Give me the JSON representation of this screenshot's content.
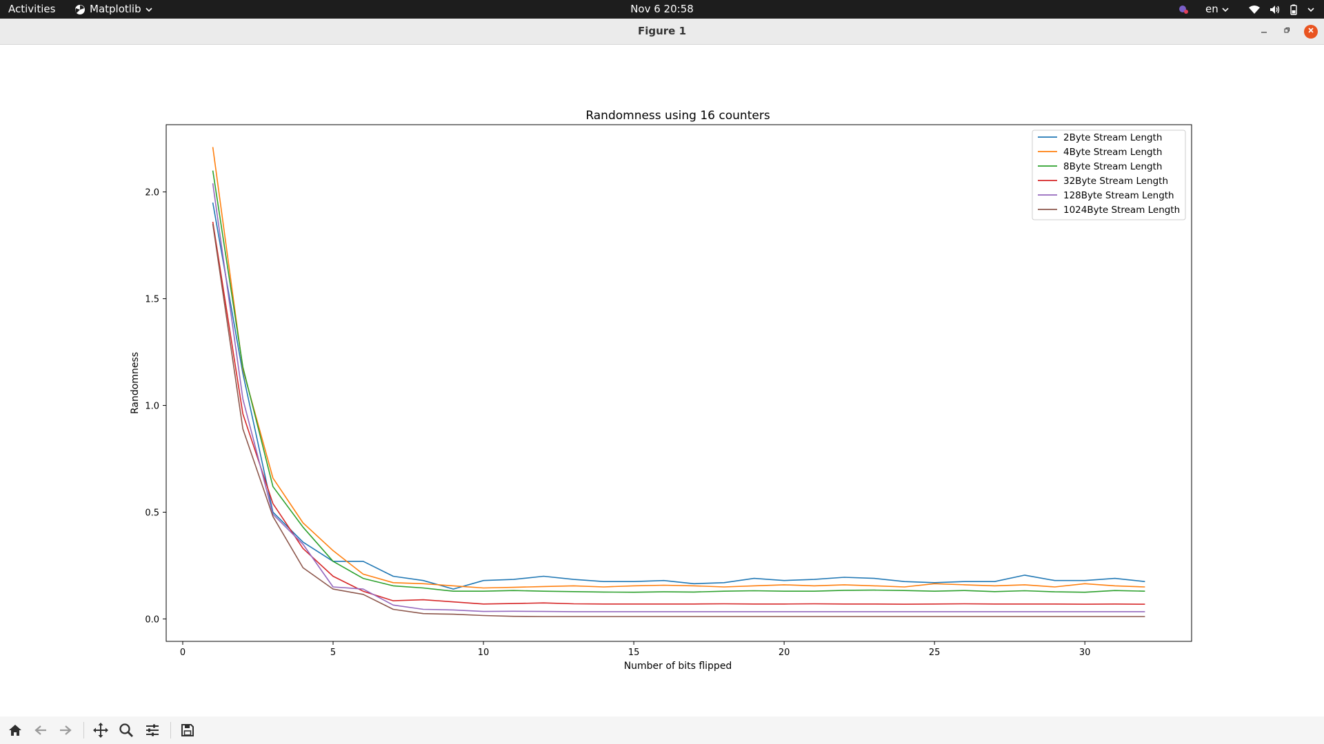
{
  "system_bar": {
    "activities": "Activities",
    "app_menu": "Matplotlib",
    "clock": "Nov 6  20:58",
    "language": "en"
  },
  "window": {
    "title": "Figure 1"
  },
  "chart_data": {
    "type": "line",
    "title": "Randomness using 16 counters",
    "xlabel": "Number of bits flipped",
    "ylabel": "Randomness",
    "xlim": [
      -0.55,
      33.55
    ],
    "ylim": [
      -0.105,
      2.315
    ],
    "xticks": [
      0,
      5,
      10,
      15,
      20,
      25,
      30
    ],
    "yticks": [
      0.0,
      0.5,
      1.0,
      1.5,
      2.0
    ],
    "legend_position": "upper-right",
    "x": [
      1,
      2,
      3,
      4,
      5,
      6,
      7,
      8,
      9,
      10,
      11,
      12,
      13,
      14,
      15,
      16,
      17,
      18,
      19,
      20,
      21,
      22,
      23,
      24,
      25,
      26,
      27,
      28,
      29,
      30,
      31,
      32
    ],
    "series": [
      {
        "name": "2Byte Stream Length",
        "color": "#1f77b4",
        "values": [
          1.95,
          1.15,
          0.5,
          0.36,
          0.27,
          0.27,
          0.2,
          0.18,
          0.14,
          0.18,
          0.185,
          0.2,
          0.185,
          0.175,
          0.175,
          0.18,
          0.165,
          0.17,
          0.19,
          0.18,
          0.185,
          0.195,
          0.19,
          0.175,
          0.17,
          0.175,
          0.175,
          0.205,
          0.18,
          0.18,
          0.19,
          0.175
        ]
      },
      {
        "name": "4Byte Stream Length",
        "color": "#ff7f0e",
        "values": [
          2.21,
          1.17,
          0.66,
          0.45,
          0.32,
          0.21,
          0.17,
          0.165,
          0.155,
          0.145,
          0.148,
          0.152,
          0.155,
          0.15,
          0.155,
          0.158,
          0.155,
          0.15,
          0.155,
          0.16,
          0.155,
          0.16,
          0.155,
          0.15,
          0.165,
          0.16,
          0.155,
          0.16,
          0.15,
          0.165,
          0.155,
          0.15
        ]
      },
      {
        "name": "8Byte Stream Length",
        "color": "#2ca02c",
        "values": [
          2.1,
          1.18,
          0.62,
          0.43,
          0.27,
          0.19,
          0.155,
          0.145,
          0.13,
          0.13,
          0.133,
          0.13,
          0.128,
          0.126,
          0.125,
          0.127,
          0.126,
          0.13,
          0.132,
          0.13,
          0.13,
          0.134,
          0.135,
          0.133,
          0.13,
          0.133,
          0.128,
          0.132,
          0.127,
          0.125,
          0.133,
          0.13
        ]
      },
      {
        "name": "32Byte Stream Length",
        "color": "#d62728",
        "values": [
          1.86,
          0.96,
          0.54,
          0.33,
          0.2,
          0.13,
          0.085,
          0.09,
          0.08,
          0.07,
          0.072,
          0.075,
          0.071,
          0.07,
          0.07,
          0.07,
          0.07,
          0.071,
          0.07,
          0.07,
          0.071,
          0.07,
          0.07,
          0.069,
          0.07,
          0.071,
          0.07,
          0.07,
          0.07,
          0.069,
          0.07,
          0.069
        ]
      },
      {
        "name": "128Byte Stream Length",
        "color": "#9467bd",
        "values": [
          2.04,
          1.03,
          0.49,
          0.35,
          0.15,
          0.14,
          0.065,
          0.045,
          0.042,
          0.035,
          0.036,
          0.035,
          0.034,
          0.034,
          0.034,
          0.034,
          0.034,
          0.034,
          0.034,
          0.034,
          0.034,
          0.034,
          0.034,
          0.034,
          0.034,
          0.034,
          0.034,
          0.034,
          0.034,
          0.034,
          0.034,
          0.034
        ]
      },
      {
        "name": "1024Byte Stream Length",
        "color": "#8c564b",
        "values": [
          1.85,
          0.89,
          0.48,
          0.24,
          0.14,
          0.115,
          0.045,
          0.025,
          0.022,
          0.016,
          0.012,
          0.011,
          0.011,
          0.011,
          0.011,
          0.011,
          0.011,
          0.011,
          0.011,
          0.011,
          0.011,
          0.011,
          0.011,
          0.011,
          0.011,
          0.011,
          0.011,
          0.011,
          0.011,
          0.011,
          0.011,
          0.011
        ]
      }
    ]
  }
}
